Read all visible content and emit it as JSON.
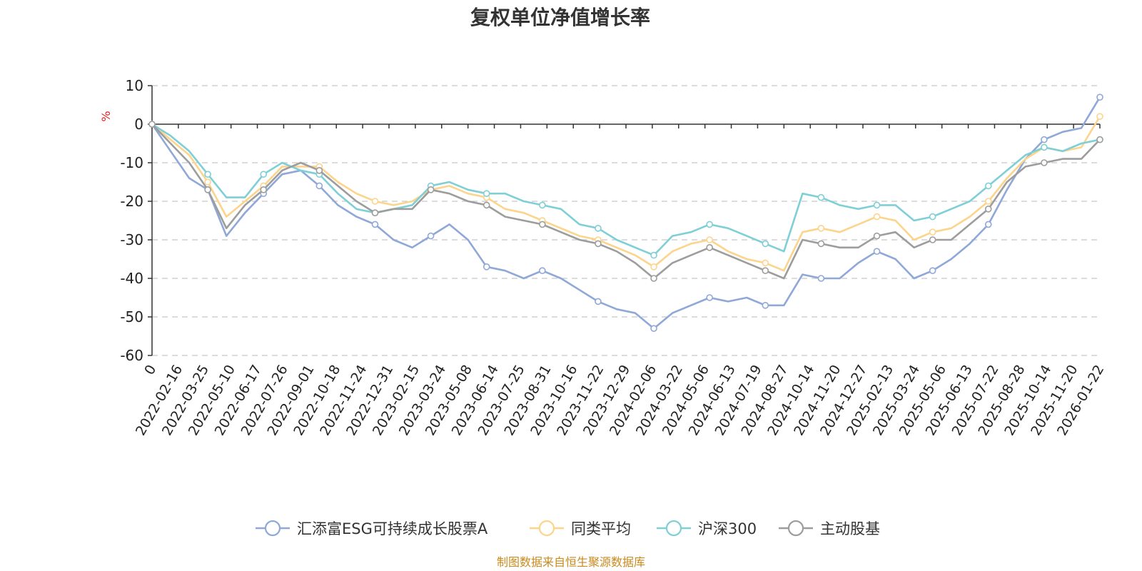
{
  "chart_data": {
    "type": "line",
    "title": "复权单位净值增长率",
    "ylabel": "%",
    "xlabel": "",
    "ylim": [
      -60,
      10
    ],
    "yticks": [
      10,
      0,
      -10,
      -20,
      -30,
      -40,
      -50,
      -60
    ],
    "x_tick_labels": [
      "0",
      "2022-02-16",
      "2022-03-25",
      "2022-05-10",
      "2022-06-17",
      "2022-07-26",
      "2022-09-01",
      "2022-10-18",
      "2022-11-24",
      "2022-12-31",
      "2023-02-15",
      "2023-03-24",
      "2023-05-08",
      "2023-06-14",
      "2023-07-25",
      "2023-08-31",
      "2023-10-16",
      "2023-11-22",
      "2023-12-29",
      "2024-02-06",
      "2024-03-22",
      "2024-05-06",
      "2024-06-13",
      "2024-07-19",
      "2024-08-27",
      "2024-10-14",
      "2024-11-20",
      "2024-12-27",
      "2025-02-13",
      "2025-03-24",
      "2025-05-06",
      "2025-06-13",
      "2025-07-22",
      "2025-08-28",
      "2025-10-14",
      "2025-11-20",
      "2026-01-22"
    ],
    "grid": true,
    "legend_position": "bottom-center",
    "source_note": "制图数据来自恒生聚源数据库",
    "series": [
      {
        "name": "汇添富ESG可持续成长股票A",
        "color": "#8fa8d8",
        "values": [
          0,
          -7,
          -14,
          -17,
          -29,
          -23,
          -18,
          -13,
          -12,
          -16,
          -21,
          -24,
          -26,
          -30,
          -32,
          -29,
          -26,
          -30,
          -37,
          -38,
          -40,
          -38,
          -40,
          -43,
          -46,
          -48,
          -49,
          -53,
          -49,
          -47,
          -45,
          -46,
          -45,
          -47,
          -47,
          -39,
          -40,
          -40,
          -36,
          -33,
          -35,
          -40,
          -38,
          -35,
          -31,
          -26,
          -17,
          -9,
          -4,
          -2,
          -1,
          7
        ]
      },
      {
        "name": "同类平均",
        "color": "#fcd48c",
        "values": [
          0,
          -4,
          -8,
          -15,
          -24,
          -20,
          -16,
          -11,
          -11,
          -11,
          -15,
          -18,
          -20,
          -21,
          -20,
          -17,
          -16,
          -18,
          -19,
          -22,
          -23,
          -25,
          -27,
          -29,
          -30,
          -32,
          -34,
          -37,
          -33,
          -31,
          -30,
          -33,
          -35,
          -36,
          -38,
          -28,
          -27,
          -28,
          -26,
          -24,
          -25,
          -30,
          -28,
          -27,
          -24,
          -20,
          -14,
          -9,
          -6,
          -7,
          -6,
          2
        ]
      },
      {
        "name": "沪深300",
        "color": "#7ecfd6",
        "values": [
          0,
          -3,
          -7,
          -13,
          -19,
          -19,
          -13,
          -10,
          -12,
          -13,
          -18,
          -22,
          -23,
          -22,
          -21,
          -16,
          -15,
          -17,
          -18,
          -18,
          -20,
          -21,
          -22,
          -26,
          -27,
          -30,
          -32,
          -34,
          -29,
          -28,
          -26,
          -27,
          -29,
          -31,
          -33,
          -18,
          -19,
          -21,
          -22,
          -21,
          -21,
          -25,
          -24,
          -22,
          -20,
          -16,
          -12,
          -8,
          -6,
          -7,
          -5,
          -4
        ]
      },
      {
        "name": "主动股基",
        "color": "#9d9d9d",
        "values": [
          0,
          -5,
          -10,
          -17,
          -27,
          -21,
          -17,
          -12,
          -10,
          -12,
          -16,
          -20,
          -23,
          -22,
          -22,
          -17,
          -18,
          -20,
          -21,
          -24,
          -25,
          -26,
          -28,
          -30,
          -31,
          -33,
          -36,
          -40,
          -36,
          -34,
          -32,
          -34,
          -36,
          -38,
          -40,
          -30,
          -31,
          -32,
          -32,
          -29,
          -28,
          -32,
          -30,
          -30,
          -26,
          -22,
          -15,
          -11,
          -10,
          -9,
          -9,
          -4
        ]
      }
    ]
  }
}
